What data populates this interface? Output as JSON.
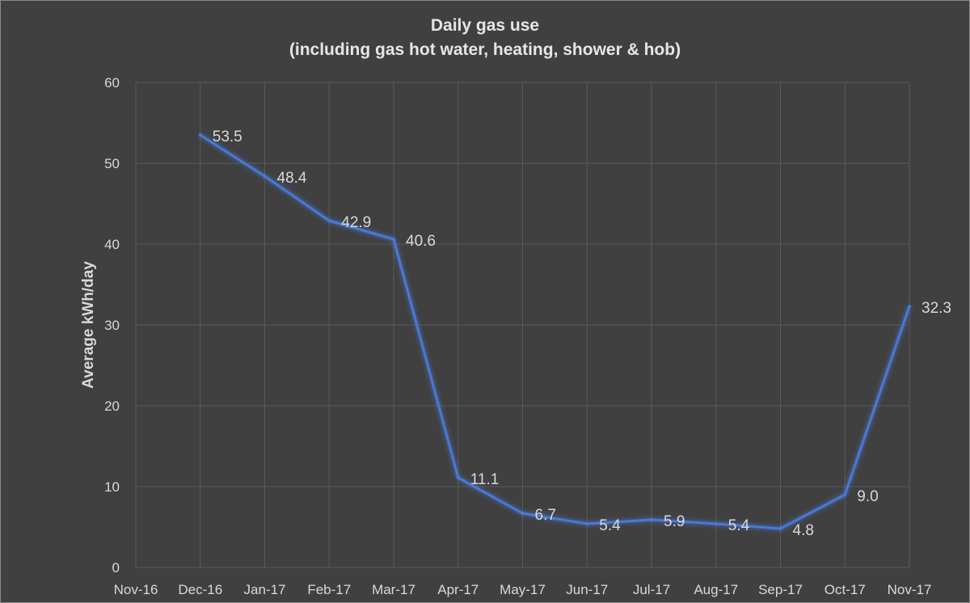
{
  "chart_data": {
    "type": "line",
    "title": "Daily gas use",
    "subtitle": "(including gas hot water, heating, shower & hob)",
    "xlabel": "",
    "ylabel": "Average kWh/day",
    "ylim": [
      0,
      60
    ],
    "yticks": [
      0,
      10,
      20,
      30,
      40,
      50,
      60
    ],
    "categories": [
      "Nov-16",
      "Dec-16",
      "Jan-17",
      "Feb-17",
      "Mar-17",
      "Apr-17",
      "May-17",
      "Jun-17",
      "Jul-17",
      "Aug-17",
      "Sep-17",
      "Oct-17",
      "Nov-17"
    ],
    "series": [
      {
        "values": [
          null,
          53.5,
          48.4,
          42.9,
          40.6,
          11.1,
          6.7,
          5.4,
          5.9,
          5.4,
          4.8,
          9.0,
          32.3
        ],
        "labels": [
          "",
          "53.5",
          "48.4",
          "42.9",
          "40.6",
          "11.1",
          "6.7",
          "5.4",
          "5.9",
          "5.4",
          "4.8",
          "9.0",
          "32.3"
        ],
        "color": "#4a78d6"
      }
    ],
    "grid": true,
    "legend": "none"
  },
  "colors": {
    "background": "#404040",
    "gridline": "#5a5a5a",
    "text": "#d9d9d9",
    "line": "#4a78d6"
  }
}
